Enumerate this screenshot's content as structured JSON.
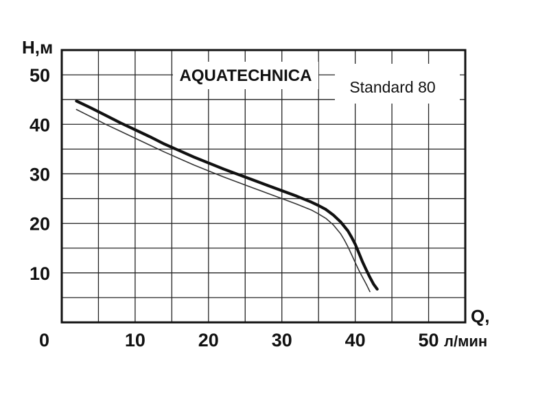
{
  "chart_data": {
    "type": "line",
    "brand_label": "AQUATECHNICA",
    "model_label": "Standard 80",
    "ylabel": "H,м",
    "xlabel": "Q,",
    "xunit": "л/мин",
    "origin_label": "0",
    "xlim": [
      0,
      55
    ],
    "ylim": [
      0,
      55
    ],
    "x_ticks": [
      "10",
      "20",
      "30",
      "40",
      "50"
    ],
    "y_ticks": [
      "10",
      "20",
      "30",
      "40",
      "50"
    ],
    "grid": true,
    "series": [
      {
        "style": "thick",
        "color": "#111111",
        "x": [
          2,
          4,
          6,
          8,
          10,
          12,
          14,
          16,
          18,
          20,
          22,
          24,
          26,
          28,
          30,
          32,
          34,
          35,
          36,
          37,
          38,
          39,
          39.5,
          40,
          40.5,
          41,
          41.5,
          42,
          42.5,
          43
        ],
        "y": [
          44.7,
          43.3,
          41.8,
          40.3,
          38.9,
          37.5,
          36.0,
          34.7,
          33.4,
          32.2,
          31.0,
          29.9,
          28.8,
          27.7,
          26.6,
          25.5,
          24.3,
          23.6,
          22.8,
          21.7,
          20.3,
          18.5,
          17.2,
          15.8,
          14.0,
          12.2,
          10.6,
          9.1,
          7.7,
          6.7
        ]
      },
      {
        "style": "thin",
        "color": "#333333",
        "x": [
          2,
          4,
          6,
          8,
          10,
          12,
          14,
          16,
          18,
          20,
          22,
          24,
          26,
          28,
          30,
          32,
          34,
          35,
          36,
          37,
          38,
          38.5,
          39,
          39.5,
          40,
          40.5,
          41,
          41.5,
          42
        ],
        "y": [
          43.0,
          41.5,
          40.0,
          38.6,
          37.2,
          35.8,
          34.4,
          33.1,
          31.8,
          30.6,
          29.4,
          28.3,
          27.2,
          26.1,
          25.0,
          23.9,
          22.7,
          21.9,
          21.0,
          19.7,
          17.9,
          16.7,
          15.3,
          13.7,
          12.1,
          10.5,
          9.1,
          7.7,
          6.2
        ]
      }
    ]
  }
}
